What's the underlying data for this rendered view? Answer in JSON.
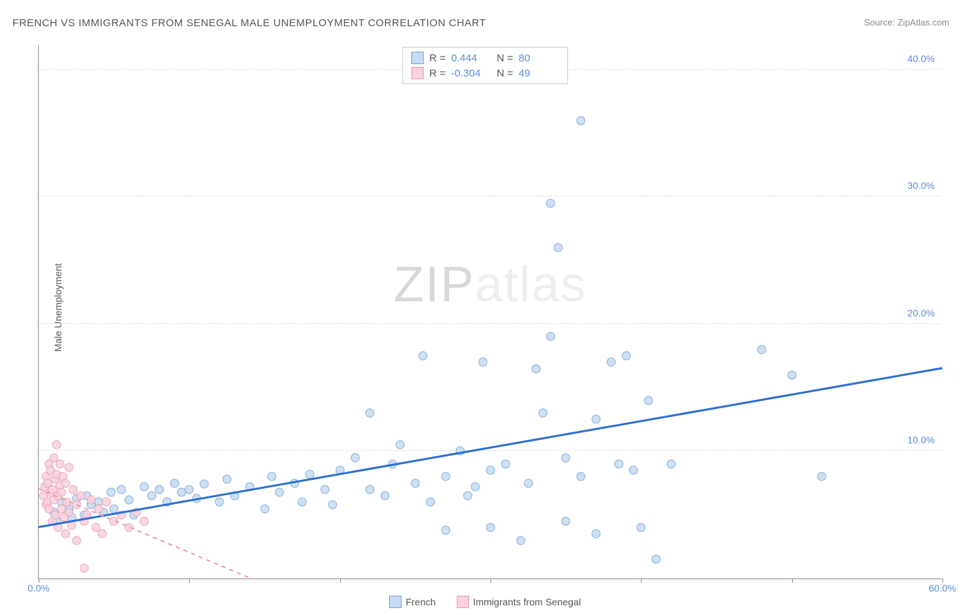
{
  "title": "FRENCH VS IMMIGRANTS FROM SENEGAL MALE UNEMPLOYMENT CORRELATION CHART",
  "source": "Source: ZipAtlas.com",
  "y_axis_label": "Male Unemployment",
  "watermark_zip": "ZIP",
  "watermark_atlas": "atlas",
  "chart": {
    "type": "scatter",
    "xlim": [
      0,
      60
    ],
    "ylim": [
      0,
      42
    ],
    "x_ticks": [
      0,
      10,
      20,
      30,
      40,
      50,
      60
    ],
    "x_tick_labels": {
      "0": "0.0%",
      "60": "60.0%"
    },
    "y_ticks": [
      10,
      20,
      30,
      40
    ],
    "y_tick_labels": {
      "10": "10.0%",
      "20": "20.0%",
      "30": "30.0%",
      "40": "40.0%"
    },
    "grid_color": "#dddddd",
    "background_color": "#ffffff",
    "axis_color": "#888888",
    "marker_size": 13,
    "series": [
      {
        "name": "French",
        "fill": "#c7dbf2",
        "stroke": "#6fa3db",
        "r_value": "0.444",
        "n_value": "80",
        "trend": {
          "x1": 0,
          "y1": 4.0,
          "x2": 60,
          "y2": 16.5,
          "color": "#2e6fd1",
          "dash": false,
          "width": 2.5
        },
        "points": [
          [
            1,
            5.2
          ],
          [
            1.2,
            4.5
          ],
          [
            1.5,
            6.0
          ],
          [
            2,
            5.5
          ],
          [
            2.2,
            4.8
          ],
          [
            2.5,
            6.3
          ],
          [
            3,
            5.0
          ],
          [
            3.2,
            6.5
          ],
          [
            3.5,
            5.8
          ],
          [
            4,
            6.0
          ],
          [
            4.3,
            5.2
          ],
          [
            4.8,
            6.8
          ],
          [
            5,
            5.5
          ],
          [
            5.5,
            7.0
          ],
          [
            6,
            6.2
          ],
          [
            6.3,
            5.0
          ],
          [
            7,
            7.2
          ],
          [
            7.5,
            6.5
          ],
          [
            8,
            7.0
          ],
          [
            8.5,
            6.0
          ],
          [
            9,
            7.5
          ],
          [
            9.5,
            6.8
          ],
          [
            10,
            7.0
          ],
          [
            10.5,
            6.3
          ],
          [
            11,
            7.4
          ],
          [
            12,
            6.0
          ],
          [
            12.5,
            7.8
          ],
          [
            13,
            6.5
          ],
          [
            14,
            7.2
          ],
          [
            15,
            5.5
          ],
          [
            15.5,
            8.0
          ],
          [
            16,
            6.8
          ],
          [
            17,
            7.5
          ],
          [
            17.5,
            6.0
          ],
          [
            18,
            8.2
          ],
          [
            19,
            7.0
          ],
          [
            19.5,
            5.8
          ],
          [
            20,
            8.5
          ],
          [
            21,
            9.5
          ],
          [
            22,
            7.0
          ],
          [
            22,
            13.0
          ],
          [
            23,
            6.5
          ],
          [
            23.5,
            9.0
          ],
          [
            24,
            10.5
          ],
          [
            25,
            7.5
          ],
          [
            25.5,
            17.5
          ],
          [
            26,
            6.0
          ],
          [
            27,
            8.0
          ],
          [
            27,
            3.8
          ],
          [
            28,
            10.0
          ],
          [
            28.5,
            6.5
          ],
          [
            29,
            7.2
          ],
          [
            29.5,
            17.0
          ],
          [
            30,
            8.5
          ],
          [
            30,
            4.0
          ],
          [
            31,
            9.0
          ],
          [
            32,
            3.0
          ],
          [
            32.5,
            7.5
          ],
          [
            33,
            16.5
          ],
          [
            33.5,
            13.0
          ],
          [
            34,
            19.0
          ],
          [
            34,
            29.5
          ],
          [
            34.5,
            26.0
          ],
          [
            35,
            9.5
          ],
          [
            35,
            4.5
          ],
          [
            36,
            36.0
          ],
          [
            36,
            8.0
          ],
          [
            37,
            3.5
          ],
          [
            38,
            17.0
          ],
          [
            38.5,
            9.0
          ],
          [
            39,
            17.5
          ],
          [
            39.5,
            8.5
          ],
          [
            40,
            4.0
          ],
          [
            40.5,
            14.0
          ],
          [
            41,
            1.5
          ],
          [
            42,
            9.0
          ],
          [
            48,
            18.0
          ],
          [
            50,
            16.0
          ],
          [
            52,
            8.0
          ],
          [
            37,
            12.5
          ]
        ]
      },
      {
        "name": "Immigrants from Senegal",
        "fill": "#f7d1dc",
        "stroke": "#e89ab0",
        "r_value": "-0.304",
        "n_value": "49",
        "trend": {
          "x1": 0,
          "y1": 7.0,
          "x2": 14,
          "y2": 0,
          "color": "#e89ab0",
          "dash": true,
          "width": 1.5
        },
        "points": [
          [
            0.3,
            6.5
          ],
          [
            0.4,
            7.2
          ],
          [
            0.5,
            5.8
          ],
          [
            0.5,
            8.0
          ],
          [
            0.6,
            6.0
          ],
          [
            0.6,
            7.5
          ],
          [
            0.7,
            9.0
          ],
          [
            0.7,
            5.5
          ],
          [
            0.8,
            6.8
          ],
          [
            0.8,
            8.5
          ],
          [
            0.9,
            7.0
          ],
          [
            0.9,
            4.5
          ],
          [
            1.0,
            9.5
          ],
          [
            1.0,
            6.2
          ],
          [
            1.1,
            7.8
          ],
          [
            1.1,
            5.0
          ],
          [
            1.2,
            8.2
          ],
          [
            1.2,
            10.5
          ],
          [
            1.3,
            6.5
          ],
          [
            1.3,
            4.0
          ],
          [
            1.4,
            7.3
          ],
          [
            1.4,
            9.0
          ],
          [
            1.5,
            5.5
          ],
          [
            1.5,
            6.8
          ],
          [
            1.6,
            8.0
          ],
          [
            1.7,
            4.8
          ],
          [
            1.8,
            7.5
          ],
          [
            1.8,
            3.5
          ],
          [
            1.9,
            6.0
          ],
          [
            2.0,
            5.2
          ],
          [
            2.0,
            8.7
          ],
          [
            2.2,
            4.2
          ],
          [
            2.3,
            7.0
          ],
          [
            2.5,
            5.8
          ],
          [
            2.5,
            3.0
          ],
          [
            2.8,
            6.5
          ],
          [
            3.0,
            4.5
          ],
          [
            3.0,
            0.8
          ],
          [
            3.2,
            5.0
          ],
          [
            3.5,
            6.2
          ],
          [
            3.8,
            4.0
          ],
          [
            4.0,
            5.5
          ],
          [
            4.2,
            3.5
          ],
          [
            4.5,
            6.0
          ],
          [
            5.0,
            4.5
          ],
          [
            5.5,
            5.0
          ],
          [
            6.0,
            4.0
          ],
          [
            6.5,
            5.2
          ],
          [
            7.0,
            4.5
          ]
        ]
      }
    ],
    "legend_top": {
      "r_label": "R =",
      "n_label": "N ="
    },
    "legend_bottom": [
      {
        "label": "French",
        "fill": "#c7dbf2",
        "stroke": "#6fa3db"
      },
      {
        "label": "Immigrants from Senegal",
        "fill": "#f7d1dc",
        "stroke": "#e89ab0"
      }
    ]
  }
}
